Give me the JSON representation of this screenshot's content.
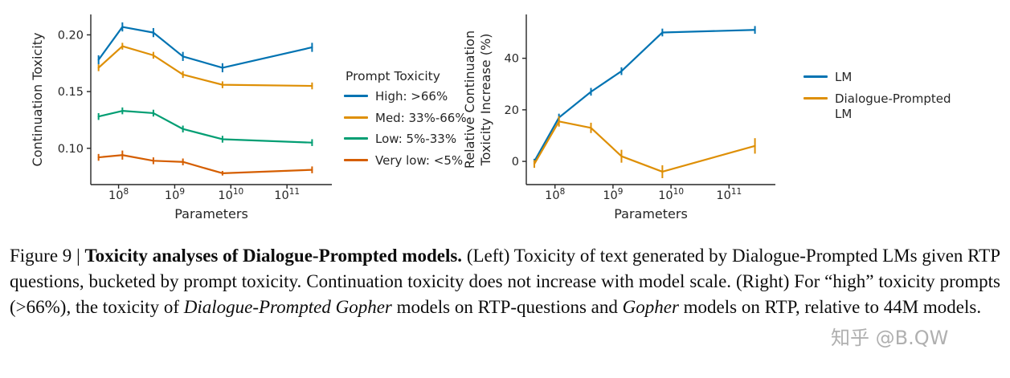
{
  "figure": {
    "watermark": "知乎 @B.QW"
  },
  "caption": {
    "prefix": "Figure 9 | ",
    "bold": "Toxicity analyses of Dialogue-Prompted models.",
    "body1": " (Left) Toxicity of text generated by Dialogue-Prompted LMs given RTP questions, bucketed by prompt toxicity. Continuation toxicity does not increase with model scale. (Right) For “high” toxicity prompts (>66%), the toxicity of ",
    "italic1": "Dialogue-Prompted Gopher",
    "body2": " models on RTP-questions and ",
    "italic2": "Gopher",
    "body3": " models on RTP, relative to 44M models."
  },
  "chart_data": [
    {
      "type": "line",
      "title": "",
      "xlabel": "Parameters",
      "ylabel_lines": [
        "Continuation Toxicity"
      ],
      "xscale": "log",
      "xlim": [
        32000000,
        630000000000
      ],
      "ylim": [
        0.068,
        0.218
      ],
      "xtick_exponents": [
        8,
        9,
        10,
        11
      ],
      "yticks": [
        {
          "value": 0.1,
          "label": "0.10"
        },
        {
          "value": 0.15,
          "label": "0.15"
        },
        {
          "value": 0.2,
          "label": "0.20"
        }
      ],
      "x": [
        44000000,
        117000000,
        417000000,
        1400000000,
        7100000000,
        280000000000
      ],
      "grid": false,
      "legend_title": "Prompt Toxicity",
      "legend_position": "right",
      "series": [
        {
          "name": "High: >66%",
          "color": "#0173b2",
          "values": [
            0.178,
            0.207,
            0.202,
            0.181,
            0.171,
            0.189
          ],
          "errors": [
            0.004,
            0.004,
            0.004,
            0.004,
            0.004,
            0.004
          ]
        },
        {
          "name": "Med: 33%-66%",
          "color": "#de8f05",
          "values": [
            0.171,
            0.19,
            0.182,
            0.165,
            0.156,
            0.155
          ],
          "errors": [
            0.003,
            0.003,
            0.003,
            0.003,
            0.003,
            0.003
          ]
        },
        {
          "name": "Low: 5%-33%",
          "color": "#029e73",
          "values": [
            0.128,
            0.133,
            0.131,
            0.117,
            0.108,
            0.105
          ],
          "errors": [
            0.003,
            0.003,
            0.003,
            0.003,
            0.003,
            0.003
          ]
        },
        {
          "name": "Very low: <5%",
          "color": "#d55e00",
          "values": [
            0.092,
            0.094,
            0.089,
            0.088,
            0.078,
            0.081
          ],
          "errors": [
            0.003,
            0.004,
            0.003,
            0.003,
            0.002,
            0.003
          ]
        }
      ]
    },
    {
      "type": "line",
      "title": "",
      "xlabel": "Parameters",
      "ylabel_lines": [
        "Relative Continuation",
        "Toxicity Increase (%)"
      ],
      "xscale": "log",
      "xlim": [
        32000000,
        630000000000
      ],
      "ylim": [
        -9,
        57
      ],
      "xtick_exponents": [
        8,
        9,
        10,
        11
      ],
      "yticks": [
        {
          "value": 0,
          "label": "0"
        },
        {
          "value": 20,
          "label": "20"
        },
        {
          "value": 40,
          "label": "40"
        }
      ],
      "x": [
        44000000,
        117000000,
        417000000,
        1400000000,
        7100000000,
        280000000000
      ],
      "grid": false,
      "legend_position": "right",
      "series": [
        {
          "name": "LM",
          "color": "#0173b2",
          "values": [
            0,
            17,
            27,
            35,
            50,
            51
          ],
          "errors": [
            1,
            1.5,
            1.5,
            1.5,
            1.5,
            1.5
          ]
        },
        {
          "name": "Dialogue-Prompted LM",
          "color": "#de8f05",
          "values": [
            -1,
            15.5,
            13,
            2,
            -4,
            6
          ],
          "errors": [
            1.5,
            2,
            2,
            2.5,
            2.5,
            3
          ]
        }
      ]
    }
  ]
}
